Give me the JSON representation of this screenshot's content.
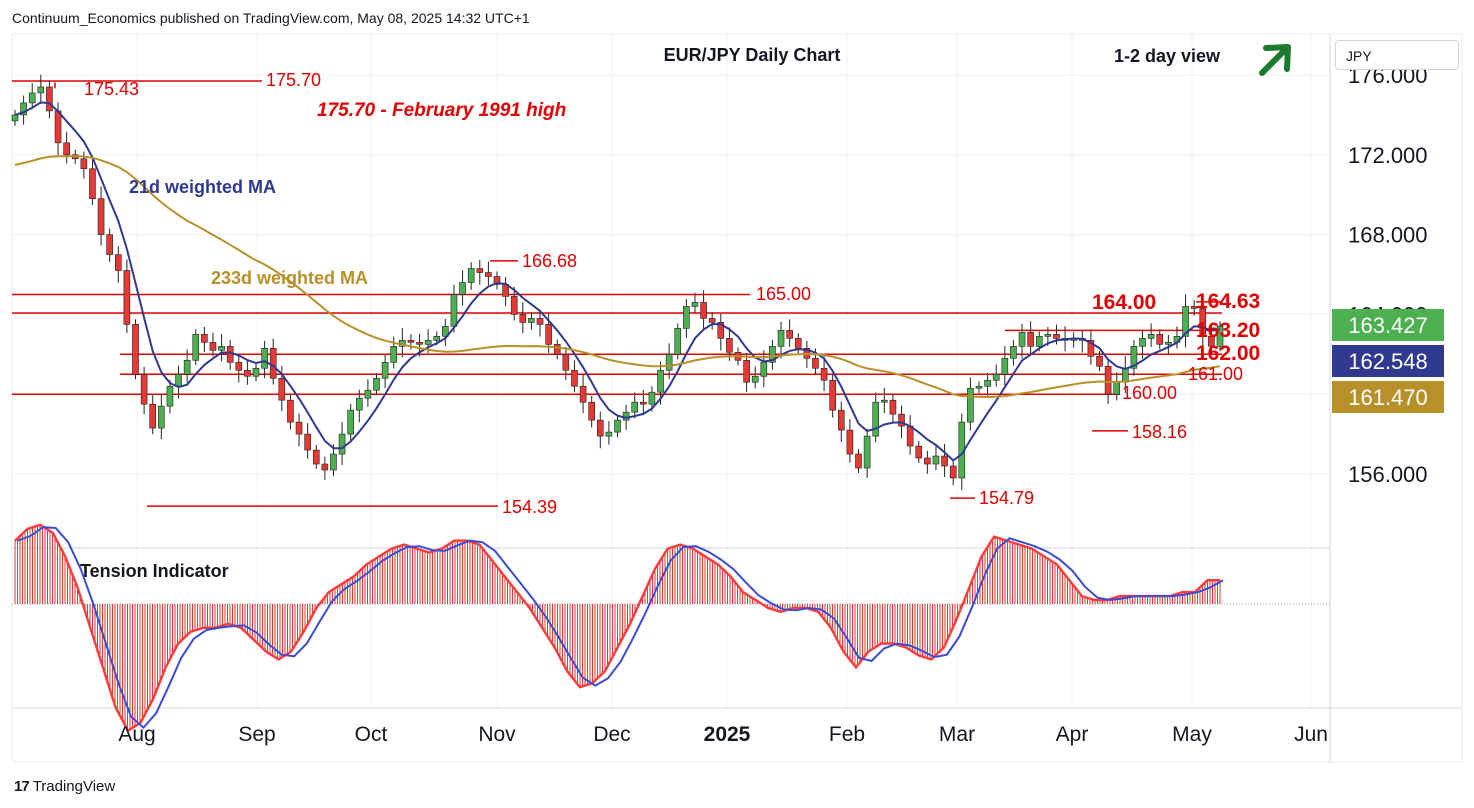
{
  "header": {
    "published": "Continuum_Economics published on TradingView.com, May 08, 2025 14:32 UTC+1"
  },
  "currency_selector": "JPY",
  "footer": {
    "brand": "TradingView",
    "logo_glyph": "17"
  },
  "colors": {
    "candle_up": "#4caf50",
    "candle_down": "#e53935",
    "level_line": "#e00000",
    "ma21": "#2f3a8f",
    "ma233": "#b8902a",
    "tension_hist": "#e53935",
    "tension_blue": "#3c4bd6",
    "tension_red": "#ff3b3b",
    "arrow": "#1b7a2e",
    "badge_green": "#4caf50",
    "badge_blue": "#2f3a8f",
    "badge_gold": "#b8902a"
  },
  "chart_data": {
    "type": "candlestick",
    "title": "EUR/JPY Daily Chart",
    "view_label": "1-2 day view",
    "view_arrow_icon": "arrow-up-right-icon",
    "ylim": [
      152.0,
      177.0
    ],
    "y_ticks": [
      "176.000",
      "172.000",
      "168.000",
      "164.000",
      "156.000"
    ],
    "x_ticks": [
      "Aug",
      "Sep",
      "Oct",
      "Nov",
      "Dec",
      "2025",
      "Feb",
      "Mar",
      "Apr",
      "May",
      "Jun"
    ],
    "price_badges": [
      {
        "value": "163.427",
        "color": "#4caf50"
      },
      {
        "value": "162.548",
        "color": "#2f3a8f"
      },
      {
        "value": "161.470",
        "color": "#b8902a"
      }
    ],
    "annotations": [
      {
        "text": "175.70 - February 1991 high"
      },
      {
        "text": "21d weighted MA"
      },
      {
        "text": "233d weighted MA"
      }
    ],
    "levels": [
      {
        "label": "175.43",
        "value": 175.43
      },
      {
        "label": "175.70",
        "value": 175.7
      },
      {
        "label": "166.68",
        "value": 166.68
      },
      {
        "label": "165.00",
        "value": 165.0
      },
      {
        "label": "164.63",
        "value": 164.63
      },
      {
        "label": "164.00",
        "value": 164.0
      },
      {
        "label": "163.20",
        "value": 163.2
      },
      {
        "label": "162.00",
        "value": 162.0
      },
      {
        "label": "161.00",
        "value": 161.0
      },
      {
        "label": "160.00",
        "value": 160.0
      },
      {
        "label": "158.16",
        "value": 158.16
      },
      {
        "label": "154.79",
        "value": 154.79
      },
      {
        "label": "154.39",
        "value": 154.39
      }
    ],
    "close_series": [
      174.0,
      174.6,
      175.1,
      175.4,
      174.2,
      172.6,
      172.0,
      171.8,
      171.3,
      169.8,
      168.0,
      167.0,
      166.2,
      163.5,
      161.0,
      159.5,
      158.3,
      159.4,
      160.4,
      161.0,
      161.7,
      163.0,
      162.6,
      162.2,
      162.4,
      161.6,
      161.2,
      160.9,
      161.3,
      162.3,
      160.8,
      159.7,
      158.6,
      158.0,
      157.2,
      156.5,
      156.2,
      157.0,
      158.0,
      159.2,
      159.8,
      160.2,
      160.8,
      161.6,
      162.4,
      162.7,
      162.6,
      162.5,
      162.7,
      162.9,
      163.4,
      165.0,
      165.6,
      166.3,
      166.1,
      165.9,
      165.5,
      164.9,
      164.0,
      163.6,
      163.8,
      163.5,
      162.5,
      162.0,
      161.2,
      160.4,
      159.6,
      158.7,
      157.9,
      158.1,
      158.7,
      159.1,
      159.6,
      159.5,
      160.1,
      161.2,
      162.0,
      163.3,
      164.4,
      164.6,
      163.8,
      163.6,
      162.8,
      162.1,
      161.7,
      160.6,
      160.9,
      161.6,
      162.4,
      163.2,
      162.8,
      162.3,
      161.8,
      161.3,
      160.7,
      159.2,
      158.2,
      157.0,
      156.3,
      157.9,
      159.6,
      159.7,
      159.0,
      158.4,
      157.4,
      156.8,
      156.5,
      156.9,
      156.4,
      155.8,
      158.6,
      160.3,
      160.4,
      160.7,
      161.0,
      161.8,
      162.4,
      163.1,
      162.4,
      162.9,
      163.0,
      162.8,
      162.7,
      162.8,
      162.7,
      161.9,
      161.4,
      160.0,
      160.6,
      161.3,
      162.4,
      162.8,
      163.0,
      162.5,
      162.6,
      162.9,
      164.4,
      164.3,
      162.9,
      162.4,
      163.4
    ],
    "series": [
      {
        "name": "21d weighted MA"
      },
      {
        "name": "233d weighted MA"
      }
    ],
    "indicator": {
      "title": "Tension Indicator",
      "type": "histogram",
      "values": [
        0.8,
        0.95,
        1.0,
        0.9,
        0.6,
        0.2,
        -0.3,
        -0.8,
        -1.3,
        -1.6,
        -1.5,
        -1.2,
        -0.8,
        -0.5,
        -0.35,
        -0.3,
        -0.3,
        -0.25,
        -0.3,
        -0.45,
        -0.6,
        -0.7,
        -0.6,
        -0.35,
        -0.05,
        0.15,
        0.25,
        0.35,
        0.5,
        0.6,
        0.7,
        0.75,
        0.7,
        0.65,
        0.7,
        0.8,
        0.8,
        0.75,
        0.55,
        0.35,
        0.15,
        -0.05,
        -0.3,
        -0.55,
        -0.85,
        -1.05,
        -1.0,
        -0.85,
        -0.55,
        -0.25,
        0.1,
        0.45,
        0.7,
        0.75,
        0.7,
        0.6,
        0.5,
        0.35,
        0.15,
        0.05,
        -0.05,
        -0.1,
        -0.05,
        -0.05,
        -0.1,
        -0.3,
        -0.6,
        -0.8,
        -0.6,
        -0.5,
        -0.5,
        -0.55,
        -0.65,
        -0.7,
        -0.55,
        -0.2,
        0.2,
        0.6,
        0.85,
        0.8,
        0.75,
        0.7,
        0.6,
        0.5,
        0.3,
        0.1,
        0.05,
        0.05,
        0.1,
        0.1,
        0.1,
        0.1,
        0.1,
        0.15,
        0.15,
        0.3,
        0.3
      ]
    }
  }
}
